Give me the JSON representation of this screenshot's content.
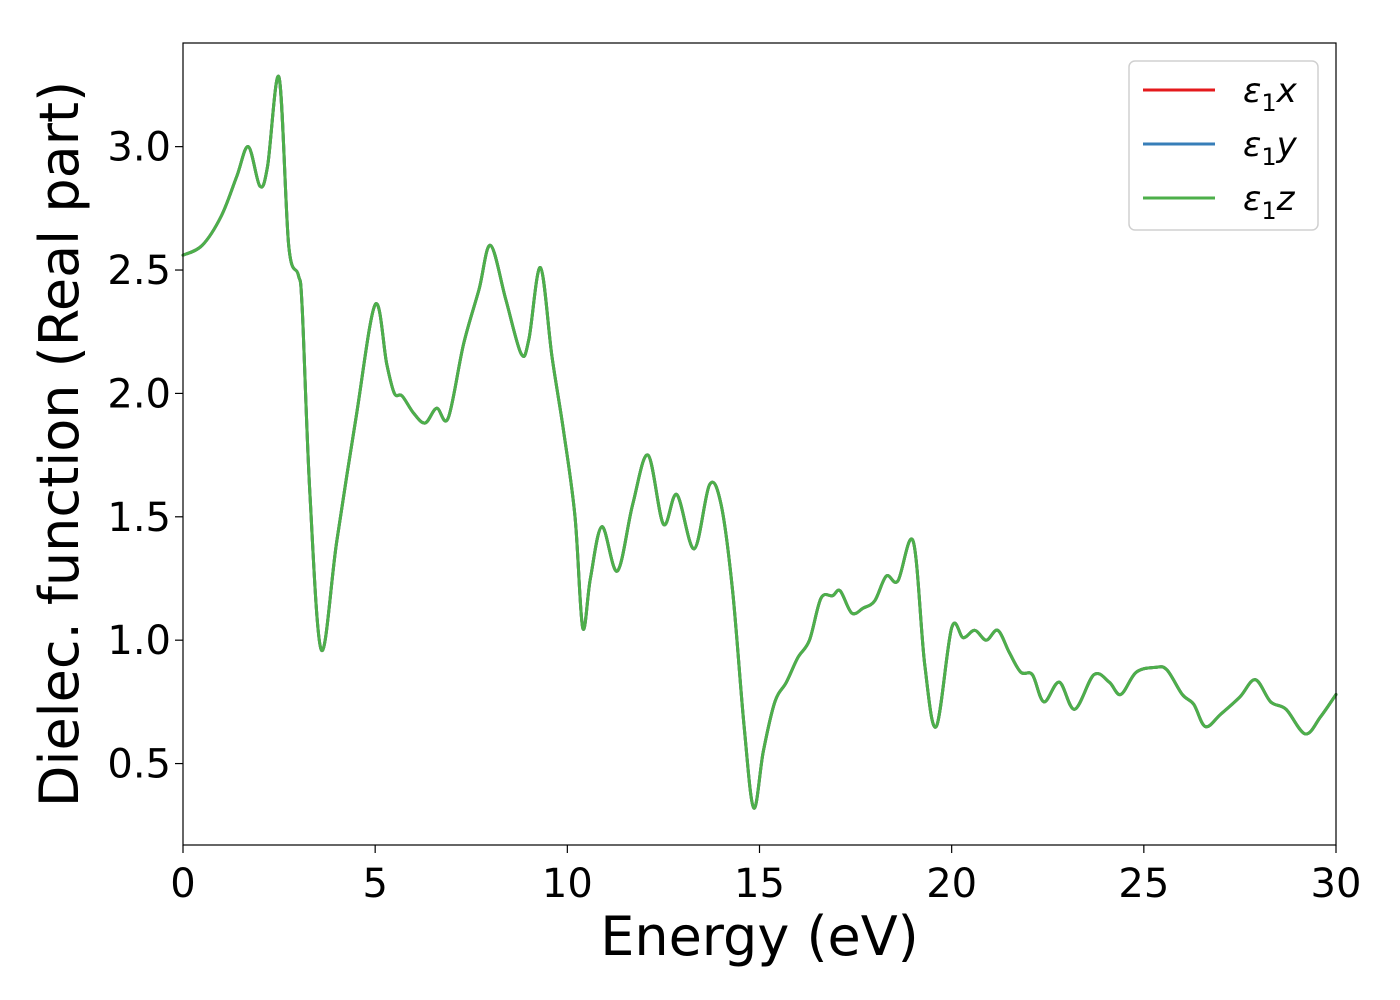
{
  "chart_data": {
    "type": "line",
    "xlabel": "Energy (eV)",
    "ylabel": "Dielec. function (Real part)",
    "xlim": [
      0,
      30
    ],
    "ylim": [
      0.17,
      3.42
    ],
    "xticks": [
      "0",
      "5",
      "10",
      "15",
      "20",
      "25",
      "30"
    ],
    "yticks": [
      "0.5",
      "1.0",
      "1.5",
      "2.0",
      "2.5",
      "3.0"
    ],
    "grid": false,
    "legend_position": "top-right",
    "series": [
      {
        "name": "ε₁x",
        "label_base": "ε",
        "label_sub": "1",
        "label_var": "x",
        "color": "#e41a1c"
      },
      {
        "name": "ε₁y",
        "label_base": "ε",
        "label_sub": "1",
        "label_var": "y",
        "color": "#377eb8"
      },
      {
        "name": "ε₁z",
        "label_base": "ε",
        "label_sub": "1",
        "label_var": "z",
        "color": "#4daf4a"
      }
    ],
    "x": [
      0,
      0.5,
      1.0,
      1.4,
      1.7,
      2.0,
      2.2,
      2.5,
      2.75,
      3.0,
      3.1,
      3.3,
      3.6,
      4.0,
      4.5,
      5.0,
      5.3,
      5.5,
      5.7,
      6.0,
      6.3,
      6.6,
      6.9,
      7.3,
      7.7,
      8.0,
      8.4,
      8.8,
      9.0,
      9.3,
      9.6,
      9.9,
      10.2,
      10.4,
      10.6,
      10.9,
      11.3,
      11.7,
      12.1,
      12.5,
      12.85,
      13.3,
      13.7,
      14.0,
      14.3,
      14.6,
      14.85,
      15.1,
      15.4,
      15.7,
      16.0,
      16.3,
      16.6,
      16.9,
      17.1,
      17.4,
      17.7,
      18.0,
      18.3,
      18.6,
      19.0,
      19.3,
      19.6,
      20.0,
      20.3,
      20.6,
      20.9,
      21.2,
      21.5,
      21.8,
      22.1,
      22.4,
      22.8,
      23.2,
      23.7,
      24.1,
      24.4,
      24.8,
      25.3,
      25.6,
      26.0,
      26.3,
      26.6,
      27.0,
      27.5,
      27.9,
      28.3,
      28.7,
      29.2,
      29.6,
      30.0
    ],
    "values": [
      2.56,
      2.6,
      2.72,
      2.88,
      3.0,
      2.84,
      2.92,
      3.28,
      2.6,
      2.48,
      2.35,
      1.6,
      0.96,
      1.4,
      1.9,
      2.36,
      2.12,
      2.0,
      1.99,
      1.92,
      1.88,
      1.94,
      1.9,
      2.2,
      2.42,
      2.6,
      2.38,
      2.16,
      2.22,
      2.51,
      2.15,
      1.85,
      1.5,
      1.05,
      1.25,
      1.46,
      1.28,
      1.55,
      1.75,
      1.47,
      1.59,
      1.37,
      1.63,
      1.55,
      1.2,
      0.65,
      0.32,
      0.55,
      0.75,
      0.83,
      0.93,
      1.0,
      1.17,
      1.18,
      1.2,
      1.11,
      1.13,
      1.16,
      1.26,
      1.24,
      1.4,
      0.9,
      0.65,
      1.05,
      1.01,
      1.04,
      1.0,
      1.04,
      0.95,
      0.87,
      0.86,
      0.75,
      0.83,
      0.72,
      0.86,
      0.83,
      0.78,
      0.87,
      0.89,
      0.88,
      0.78,
      0.74,
      0.65,
      0.7,
      0.77,
      0.84,
      0.75,
      0.72,
      0.62,
      0.69,
      0.78
    ]
  }
}
